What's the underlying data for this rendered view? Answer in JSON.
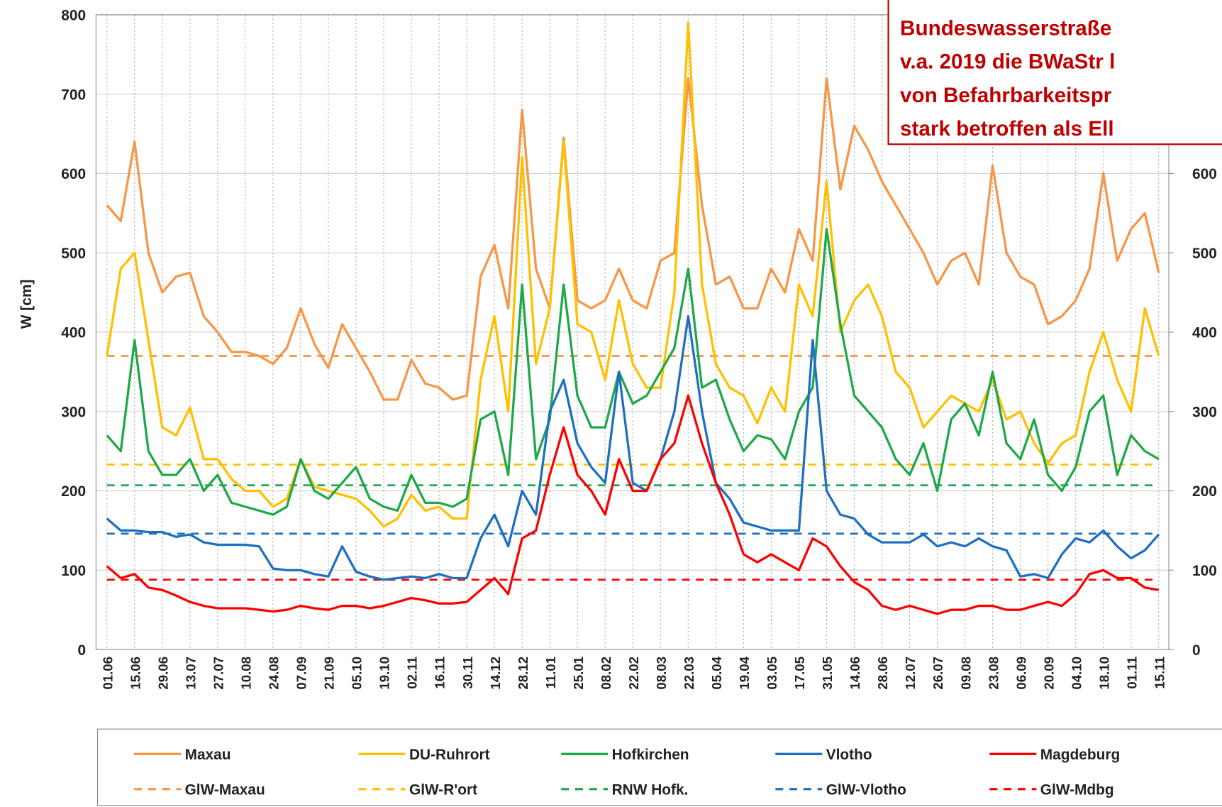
{
  "chart_data": {
    "type": "line",
    "y_label": "W [cm]",
    "annotation": [
      "Bundeswasserstraße",
      "v.a. 2019 die BWaStr l",
      "von Befahrbarkeitspr",
      "stark betroffen als Ell"
    ],
    "ylim": [
      0,
      800
    ],
    "yticks": [
      0,
      100,
      200,
      300,
      400,
      500,
      600,
      700,
      800
    ],
    "y2lim": [
      0,
      800
    ],
    "y2ticks": [
      0,
      100,
      200,
      300,
      400,
      500,
      600
    ],
    "grid": true,
    "categories": [
      "01.06",
      null,
      "15.06",
      null,
      "29.06",
      null,
      "13.07",
      null,
      "27.07",
      null,
      "10.08",
      null,
      "24.08",
      null,
      "07.09",
      null,
      "21.09",
      null,
      "05.10",
      null,
      "19.10",
      null,
      "02.11",
      null,
      "16.11",
      null,
      "30.11",
      null,
      "14.12",
      null,
      "28.12",
      null,
      "11.01",
      null,
      "25.01",
      null,
      "08.02",
      null,
      "22.02",
      null,
      "08.03",
      null,
      "22.03",
      null,
      "05.04",
      null,
      "19.04",
      null,
      "03.05",
      null,
      "17.05",
      null,
      "31.05",
      null,
      "14.06",
      null,
      "28.06",
      null,
      "12.07",
      null,
      "26.07",
      null,
      "09.08",
      null,
      "23.08",
      null,
      "06.09",
      null,
      "20.09",
      null,
      "04.10",
      null,
      "18.10",
      null,
      "01.11",
      null,
      "15.11"
    ],
    "series": [
      {
        "name": "Maxau",
        "color": "#f79646",
        "values": [
          560,
          540,
          640,
          500,
          450,
          470,
          475,
          420,
          400,
          375,
          375,
          370,
          360,
          380,
          430,
          385,
          355,
          410,
          380,
          350,
          315,
          315,
          365,
          335,
          330,
          315,
          320,
          470,
          510,
          430,
          680,
          480,
          430,
          645,
          440,
          430,
          440,
          480,
          440,
          430,
          490,
          500,
          720,
          560,
          460,
          470,
          430,
          430,
          480,
          450,
          530,
          490,
          720,
          580,
          660,
          630,
          590,
          560,
          530,
          500,
          460,
          490,
          500,
          460,
          610,
          500,
          470,
          460,
          410,
          420,
          440,
          480,
          600,
          490,
          530,
          550,
          475
        ]
      },
      {
        "name": "DU-Ruhrort",
        "color": "#ffc000",
        "values": [
          370,
          480,
          500,
          390,
          280,
          270,
          305,
          240,
          240,
          215,
          200,
          200,
          180,
          190,
          240,
          205,
          200,
          195,
          190,
          175,
          155,
          165,
          195,
          175,
          180,
          165,
          165,
          340,
          420,
          300,
          620,
          360,
          430,
          640,
          410,
          400,
          340,
          440,
          360,
          330,
          330,
          450,
          790,
          460,
          360,
          330,
          320,
          285,
          330,
          300,
          460,
          420,
          590,
          400,
          440,
          460,
          420,
          350,
          330,
          280,
          300,
          320,
          310,
          300,
          340,
          290,
          300,
          260,
          235,
          260,
          270,
          350,
          400,
          340,
          300,
          430,
          370
        ]
      },
      {
        "name": "Hofkirchen",
        "color": "#1ea84a",
        "values": [
          270,
          250,
          390,
          250,
          220,
          220,
          240,
          200,
          220,
          185,
          180,
          175,
          170,
          180,
          240,
          200,
          190,
          210,
          230,
          190,
          180,
          175,
          220,
          185,
          185,
          180,
          190,
          290,
          300,
          220,
          460,
          240,
          290,
          460,
          320,
          280,
          280,
          350,
          310,
          320,
          350,
          380,
          480,
          330,
          340,
          290,
          250,
          270,
          265,
          240,
          300,
          330,
          530,
          410,
          320,
          300,
          280,
          240,
          220,
          260,
          200,
          290,
          310,
          270,
          350,
          260,
          240,
          290,
          220,
          200,
          230,
          300,
          320,
          220,
          270,
          250,
          240
        ]
      },
      {
        "name": "Vlotho",
        "color": "#1f6fc0",
        "values": [
          165,
          150,
          150,
          148,
          148,
          142,
          145,
          135,
          132,
          132,
          132,
          130,
          102,
          100,
          100,
          95,
          92,
          130,
          98,
          92,
          88,
          90,
          92,
          90,
          95,
          90,
          90,
          140,
          170,
          130,
          200,
          170,
          300,
          340,
          260,
          230,
          210,
          350,
          210,
          200,
          240,
          300,
          420,
          300,
          210,
          190,
          160,
          155,
          150,
          150,
          150,
          390,
          200,
          170,
          165,
          145,
          135,
          135,
          135,
          145,
          130,
          135,
          130,
          140,
          130,
          125,
          92,
          95,
          90,
          120,
          140,
          135,
          150,
          130,
          115,
          125,
          145
        ]
      },
      {
        "name": "Magdeburg",
        "color": "#ff0000",
        "values": [
          105,
          90,
          95,
          78,
          75,
          68,
          60,
          55,
          52,
          52,
          52,
          50,
          48,
          50,
          55,
          52,
          50,
          55,
          55,
          52,
          55,
          60,
          65,
          62,
          58,
          58,
          60,
          75,
          90,
          70,
          140,
          150,
          220,
          280,
          220,
          200,
          170,
          240,
          200,
          200,
          240,
          260,
          320,
          260,
          210,
          170,
          120,
          110,
          120,
          110,
          100,
          140,
          130,
          105,
          85,
          75,
          55,
          50,
          55,
          50,
          45,
          50,
          50,
          55,
          55,
          50,
          50,
          55,
          60,
          55,
          70,
          95,
          100,
          90,
          90,
          78,
          75
        ]
      }
    ],
    "reference_lines": [
      {
        "name": "GlW-Maxau",
        "color": "#f79646",
        "value": 370
      },
      {
        "name": "GlW-R'ort",
        "color": "#ffc000",
        "value": 233
      },
      {
        "name": "RNW Hofk.",
        "color": "#1ea84a",
        "value": 207
      },
      {
        "name": "GlW-Vlotho",
        "color": "#1f6fc0",
        "value": 146
      },
      {
        "name": "GlW-Mdbg",
        "color": "#ff0000",
        "value": 88
      }
    ]
  }
}
